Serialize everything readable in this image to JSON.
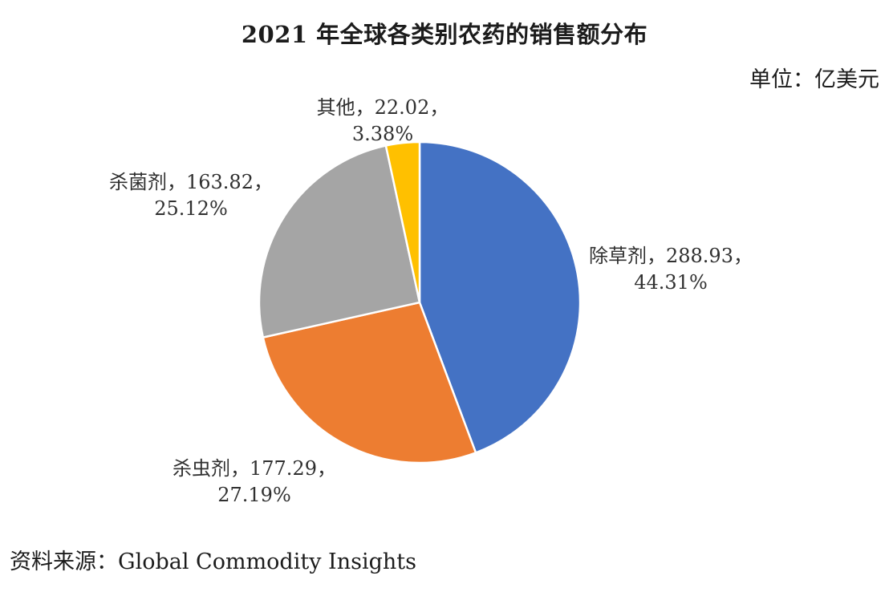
{
  "chart_data": {
    "type": "pie",
    "title": "2021 年全球各类别农药的销售额分布",
    "unit_label": "单位：亿美元",
    "source_label": "资料来源：Global Commodity Insights",
    "slices": [
      {
        "name": "除草剂",
        "value": 288.93,
        "percent": "44.31%",
        "line1": "除草剂，288.93，",
        "line2": "44.31%",
        "color": "#4472C4"
      },
      {
        "name": "杀虫剂",
        "value": 177.29,
        "percent": "27.19%",
        "line1": "杀虫剂，177.29，",
        "line2": "27.19%",
        "color": "#ED7D31"
      },
      {
        "name": "杀菌剂",
        "value": 163.82,
        "percent": "25.12%",
        "line1": "杀菌剂，163.82，",
        "line2": "25.12%",
        "color": "#A5A5A5"
      },
      {
        "name": "其他",
        "value": 22.02,
        "percent": "3.38%",
        "line1": "其他，22.02，",
        "line2": "3.38%",
        "color": "#FFC000"
      }
    ]
  }
}
